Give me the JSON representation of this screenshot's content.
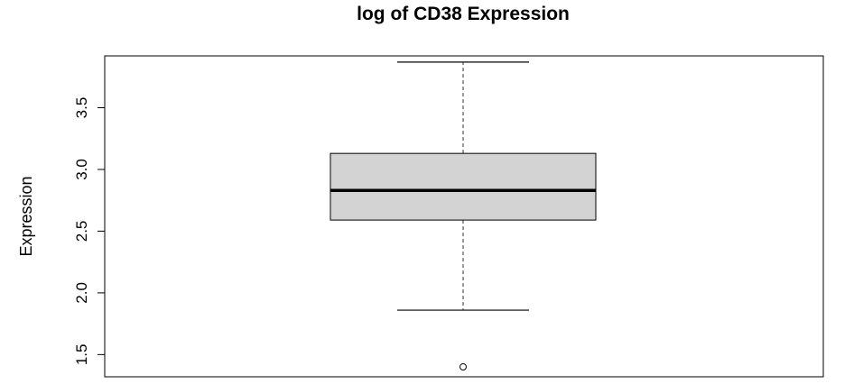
{
  "chart_data": {
    "type": "boxplot",
    "title": "log of CD38 Expression",
    "xlabel": "",
    "ylabel": "Expression",
    "ylim": [
      1.32,
      3.92
    ],
    "yticks": [
      1.5,
      2.0,
      2.5,
      3.0,
      3.5
    ],
    "ytick_labels": [
      "1.5",
      "2.0",
      "2.5",
      "3.0",
      "3.5"
    ],
    "grid": false,
    "box": {
      "whisker_low": 1.86,
      "q1": 2.59,
      "median": 2.83,
      "q3": 3.13,
      "whisker_high": 3.87,
      "outliers": [
        1.4
      ]
    }
  },
  "colors": {
    "box_fill": "#d3d3d3",
    "stroke": "#000000",
    "whisker": "#555555"
  }
}
